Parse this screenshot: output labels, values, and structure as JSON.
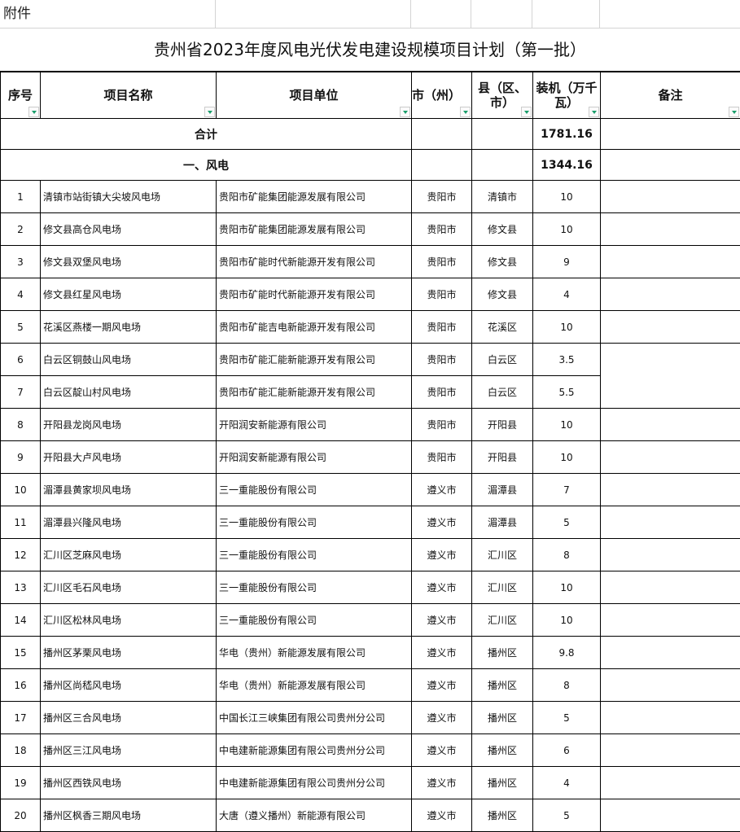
{
  "attachment_label": "附件",
  "title": "贵州省2023年度风电光伏发电建设规模项目计划（第一批）",
  "headers": [
    "序号",
    "项目名称",
    "项目单位",
    "市（州）",
    "县（区、市）",
    "装机（万千瓦）",
    "备注"
  ],
  "total": {
    "label": "合计",
    "capacity": "1781.16"
  },
  "section": {
    "label": "一、风电",
    "capacity": "1344.16"
  },
  "rows": [
    [
      "1",
      "清镇市站街镇大尖坡风电场",
      "贵阳市矿能集团能源发展有限公司",
      "贵阳市",
      "清镇市",
      "10"
    ],
    [
      "2",
      "修文县高仓风电场",
      "贵阳市矿能集团能源发展有限公司",
      "贵阳市",
      "修文县",
      "10"
    ],
    [
      "3",
      "修文县双堡风电场",
      "贵阳市矿能时代新能源开发有限公司",
      "贵阳市",
      "修文县",
      "9"
    ],
    [
      "4",
      "修文县红星风电场",
      "贵阳市矿能时代新能源开发有限公司",
      "贵阳市",
      "修文县",
      "4"
    ],
    [
      "5",
      "花溪区燕楼一期风电场",
      "贵阳市矿能吉电新能源开发有限公司",
      "贵阳市",
      "花溪区",
      "10"
    ],
    [
      "6",
      "白云区铜鼓山风电场",
      "贵阳市矿能汇能新能源开发有限公司",
      "贵阳市",
      "白云区",
      "3.5"
    ],
    [
      "7",
      "白云区靛山村风电场",
      "贵阳市矿能汇能新能源开发有限公司",
      "贵阳市",
      "白云区",
      "5.5"
    ],
    [
      "8",
      "开阳县龙岗风电场",
      "开阳润安新能源有限公司",
      "贵阳市",
      "开阳县",
      "10"
    ],
    [
      "9",
      "开阳县大卢风电场",
      "开阳润安新能源有限公司",
      "贵阳市",
      "开阳县",
      "10"
    ],
    [
      "10",
      "湄潭县黄家坝风电场",
      "三一重能股份有限公司",
      "遵义市",
      "湄潭县",
      "7"
    ],
    [
      "11",
      "湄潭县兴隆风电场",
      "三一重能股份有限公司",
      "遵义市",
      "湄潭县",
      "5"
    ],
    [
      "12",
      "汇川区芝麻风电场",
      "三一重能股份有限公司",
      "遵义市",
      "汇川区",
      "8"
    ],
    [
      "13",
      "汇川区毛石风电场",
      "三一重能股份有限公司",
      "遵义市",
      "汇川区",
      "10"
    ],
    [
      "14",
      "汇川区松林风电场",
      "三一重能股份有限公司",
      "遵义市",
      "汇川区",
      "10"
    ],
    [
      "15",
      "播州区茅栗风电场",
      "华电（贵州）新能源发展有限公司",
      "遵义市",
      "播州区",
      "9.8"
    ],
    [
      "16",
      "播州区尚嵇风电场",
      "华电（贵州）新能源发展有限公司",
      "遵义市",
      "播州区",
      "8"
    ],
    [
      "17",
      "播州区三合风电场",
      "中国长江三峡集团有限公司贵州分公司",
      "遵义市",
      "播州区",
      "5"
    ],
    [
      "18",
      "播州区三江风电场",
      "中电建新能源集团有限公司贵州分公司",
      "遵义市",
      "播州区",
      "6"
    ],
    [
      "19",
      "播州区西铁风电场",
      "中电建新能源集团有限公司贵州分公司",
      "遵义市",
      "播州区",
      "4"
    ],
    [
      "20",
      "播州区枫香三期风电场",
      "大唐（遵义播州）新能源有限公司",
      "遵义市",
      "播州区",
      "5"
    ]
  ]
}
